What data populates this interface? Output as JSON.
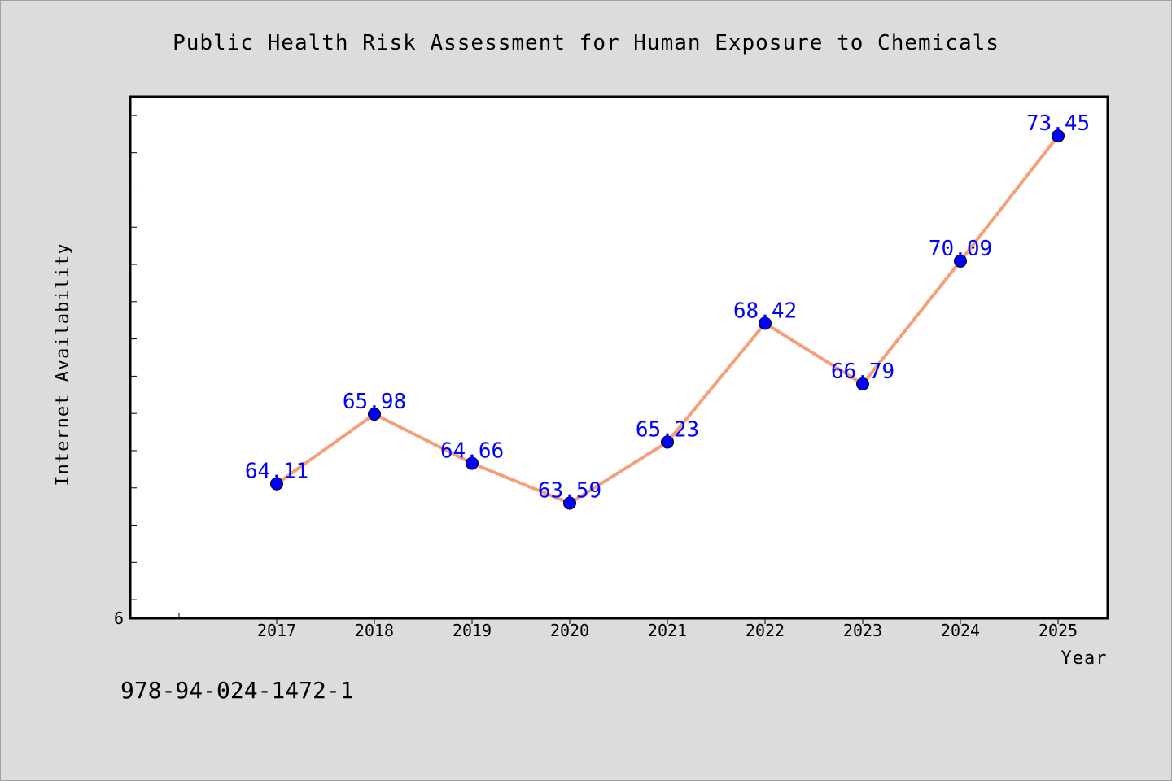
{
  "chart_data": {
    "type": "line",
    "title": "Public Health Risk Assessment for Human Exposure to Chemicals",
    "xlabel": "Year",
    "ylabel": "Internet Availability",
    "categories": [
      "2017",
      "2018",
      "2019",
      "2020",
      "2021",
      "2022",
      "2023",
      "2024",
      "2025"
    ],
    "series": [
      {
        "values": [
          64.11,
          65.98,
          64.66,
          63.59,
          65.23,
          68.42,
          66.79,
          70.09,
          73.45
        ],
        "labels": [
          "64.11",
          "65.98",
          "64.66",
          "63.59",
          "65.23",
          "68.42",
          "66.79",
          "70.09",
          "73.45"
        ]
      }
    ],
    "ylim": [
      60.5,
      74.5
    ],
    "y_tick_label": "6",
    "grid": false,
    "line_color": "#f4a07a",
    "marker_color": "#0000ff",
    "label_color": "#0000ff"
  },
  "footnote": "978-94-024-1472-1"
}
